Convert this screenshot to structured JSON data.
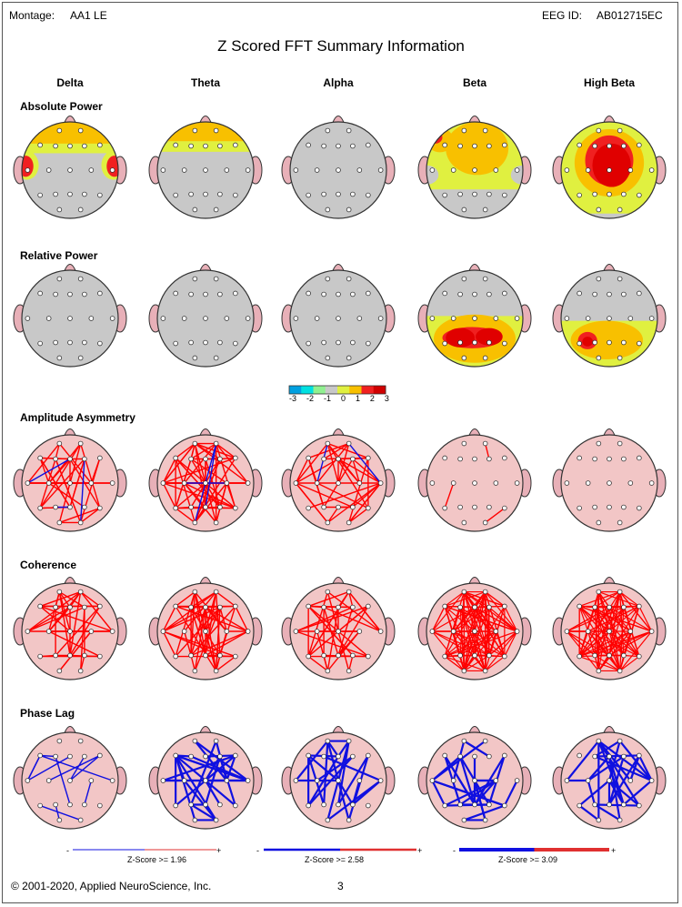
{
  "header": {
    "montage_label": "Montage:",
    "montage_value": "AA1 LE",
    "eeg_id_label": "EEG ID:",
    "eeg_id_value": "AB012715EC"
  },
  "title": "Z Scored FFT Summary Information",
  "bands": [
    "Delta",
    "Theta",
    "Alpha",
    "Beta",
    "High Beta"
  ],
  "rows": [
    "Absolute Power",
    "Relative Power",
    "Amplitude Asymmetry",
    "Coherence",
    "Phase Lag"
  ],
  "colorscale": {
    "ticks": [
      "-3",
      "-2",
      "-1",
      "0",
      "1",
      "2",
      "3"
    ],
    "colors": [
      "#00a0e0",
      "#00e0e0",
      "#90f090",
      "#c8c8c8",
      "#e0f040",
      "#f8c000",
      "#f02020",
      "#d00000"
    ]
  },
  "zscore_legends": [
    {
      "minus": "-",
      "label": "Z-Score >= 1.96",
      "plus": "+"
    },
    {
      "minus": "-",
      "label": "Z-Score >= 2.58",
      "plus": "+"
    },
    {
      "minus": "-",
      "label": "Z-Score >= 3.09",
      "plus": "+"
    }
  ],
  "footer": {
    "copyright": "© 2001-2020, Applied NeuroScience, Inc.",
    "page_number": "3"
  },
  "colors": {
    "head_gray": "#c8c8c8",
    "head_pink": "#f2c6c6",
    "line_red": "#ff0000",
    "line_blue": "#1010e0"
  }
}
